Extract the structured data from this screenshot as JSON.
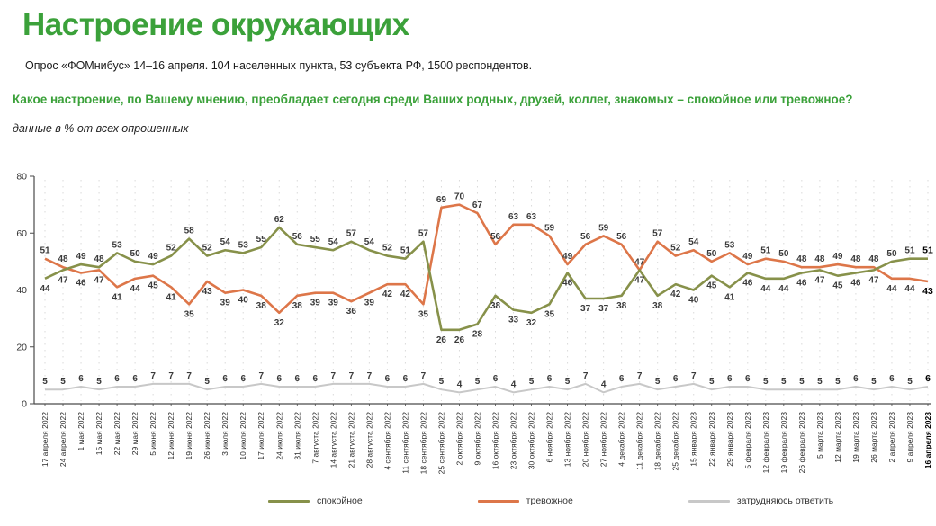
{
  "header": {
    "title": "Настроение окружающих",
    "subtitle": "Опрос «ФОМнибус» 14–16 апреля. 104 населенных пункта, 53 субъекта РФ, 1500 респондентов.",
    "question": "Какое настроение, по Вашему мнению, преобладает сегодня среди Ваших родных, друзей, коллег, знакомых – спокойное или тревожное?",
    "note": "данные в % от всех опрошенных"
  },
  "colors": {
    "title_green": "#3BA13A",
    "calm_line": "#87914A",
    "anxious_line": "#DD7649",
    "dk_line": "#C8C8C8",
    "value_label": "#3A3A3A",
    "bold_label": "#000000",
    "axis": "#4A4A4A",
    "grid": "#DADADA"
  },
  "legend": {
    "items": [
      {
        "label": "спокойное"
      },
      {
        "label": "тревожное"
      },
      {
        "label": "затрудняюсь ответить"
      }
    ]
  },
  "chart_data": {
    "type": "line",
    "title": "Настроение окружающих",
    "xlabel": "",
    "ylabel": "",
    "unit": "% от всех опрошенных",
    "ylim": [
      0,
      80
    ],
    "yticks": [
      0,
      20,
      40,
      60,
      80
    ],
    "grid": "vertical-dotted",
    "legend_position": "bottom",
    "last_point_bold": true,
    "categories": [
      "17 апреля 2022",
      "24 апреля 2022",
      "1 мая 2022",
      "15 мая 2022",
      "22 мая 2022",
      "29 мая 2022",
      "5 июня 2022",
      "12 июня 2022",
      "19 июня 2022",
      "26 июня 2022",
      "3 июля 2022",
      "10 июля 2022",
      "17 июля 2022",
      "24 июля 2022",
      "31 июля 2022",
      "7 августа 2022",
      "14 августа 2022",
      "21 августа 2022",
      "28 августа 2022",
      "4 сентября 2022",
      "11 сентября 2022",
      "18 сентября 2022",
      "25 сентября 2022",
      "2 октября 2022",
      "9 октября 2022",
      "16 октября 2022",
      "23 октября 2022",
      "30 октября 2022",
      "6 ноября 2022",
      "13 ноября 2022",
      "20 ноября 2022",
      "27 ноября 2022",
      "4 декабря 2022",
      "11 декабря 2022",
      "18 декабря 2022",
      "25 декабря 2022",
      "15 января 2023",
      "22 января 2023",
      "29 января 2023",
      "5 февраля 2023",
      "12 февраля 2023",
      "19 февраля 2023",
      "26 февраля 2023",
      "5 марта 2023",
      "12 марта 2023",
      "19 марта 2023",
      "26 марта 2023",
      "2 апреля 2023",
      "9 апреля 2023",
      "16 апреля 2023"
    ],
    "series": [
      {
        "name": "спокойное",
        "values": [
          44,
          47,
          49,
          48,
          53,
          50,
          49,
          52,
          58,
          52,
          54,
          53,
          55,
          62,
          56,
          55,
          54,
          57,
          54,
          52,
          51,
          57,
          26,
          26,
          28,
          38,
          33,
          32,
          35,
          46,
          37,
          37,
          38,
          47,
          38,
          42,
          40,
          45,
          41,
          46,
          44,
          44,
          46,
          47,
          45,
          46,
          47,
          50,
          51,
          51
        ]
      },
      {
        "name": "тревожное",
        "values": [
          51,
          48,
          46,
          47,
          41,
          44,
          45,
          41,
          35,
          43,
          39,
          40,
          38,
          32,
          38,
          39,
          39,
          36,
          39,
          42,
          42,
          35,
          69,
          70,
          67,
          56,
          63,
          63,
          59,
          49,
          56,
          59,
          56,
          47,
          57,
          52,
          54,
          50,
          53,
          49,
          51,
          50,
          48,
          48,
          49,
          48,
          48,
          44,
          44,
          43
        ]
      },
      {
        "name": "затрудняюсь ответить",
        "values": [
          5,
          5,
          6,
          5,
          6,
          6,
          7,
          7,
          7,
          5,
          6,
          6,
          7,
          6,
          6,
          6,
          7,
          7,
          7,
          6,
          6,
          7,
          5,
          4,
          5,
          6,
          4,
          5,
          6,
          5,
          7,
          4,
          6,
          7,
          5,
          6,
          7,
          5,
          6,
          6,
          5,
          5,
          5,
          5,
          5,
          6,
          5,
          6,
          5,
          6
        ]
      }
    ]
  }
}
